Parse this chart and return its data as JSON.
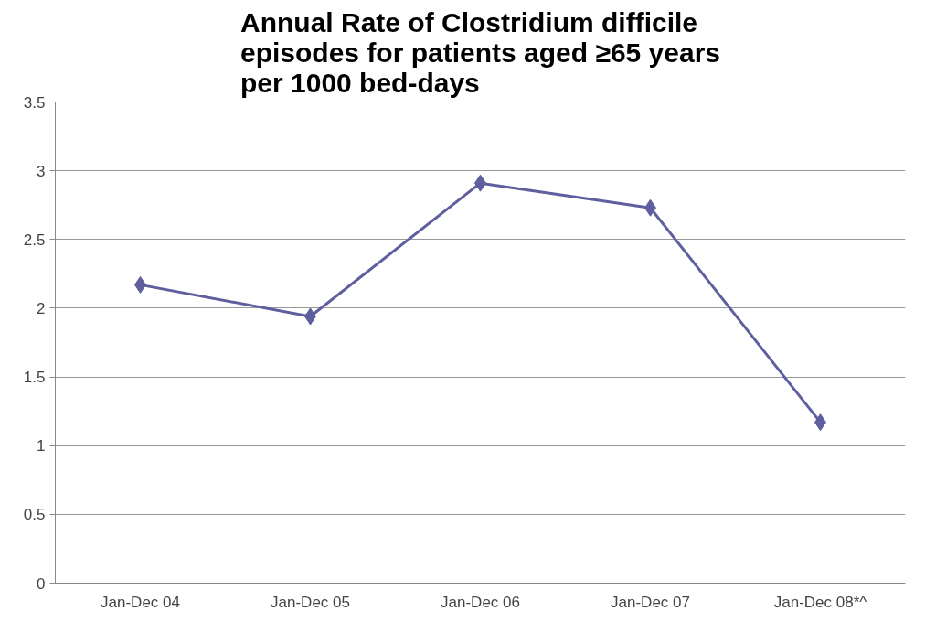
{
  "chart_data": {
    "type": "line",
    "title": "Annual Rate of Clostridium difficile\nepisodes for patients aged ≥65 years\nper 1000 bed-days",
    "categories": [
      "Jan-Dec 04",
      "Jan-Dec 05",
      "Jan-Dec 06",
      "Jan-Dec 07",
      "Jan-Dec 08*^"
    ],
    "series": [
      {
        "color": "#5f5f9f",
        "values": [
          2.17,
          1.94,
          2.91,
          2.73,
          1.17
        ]
      }
    ],
    "ylim": [
      0,
      3.5
    ],
    "yticks": [
      0,
      0.5,
      1,
      1.5,
      2,
      2.5,
      3,
      3.5
    ],
    "grid": "y",
    "marker": "diamond",
    "line_style": "solid"
  }
}
